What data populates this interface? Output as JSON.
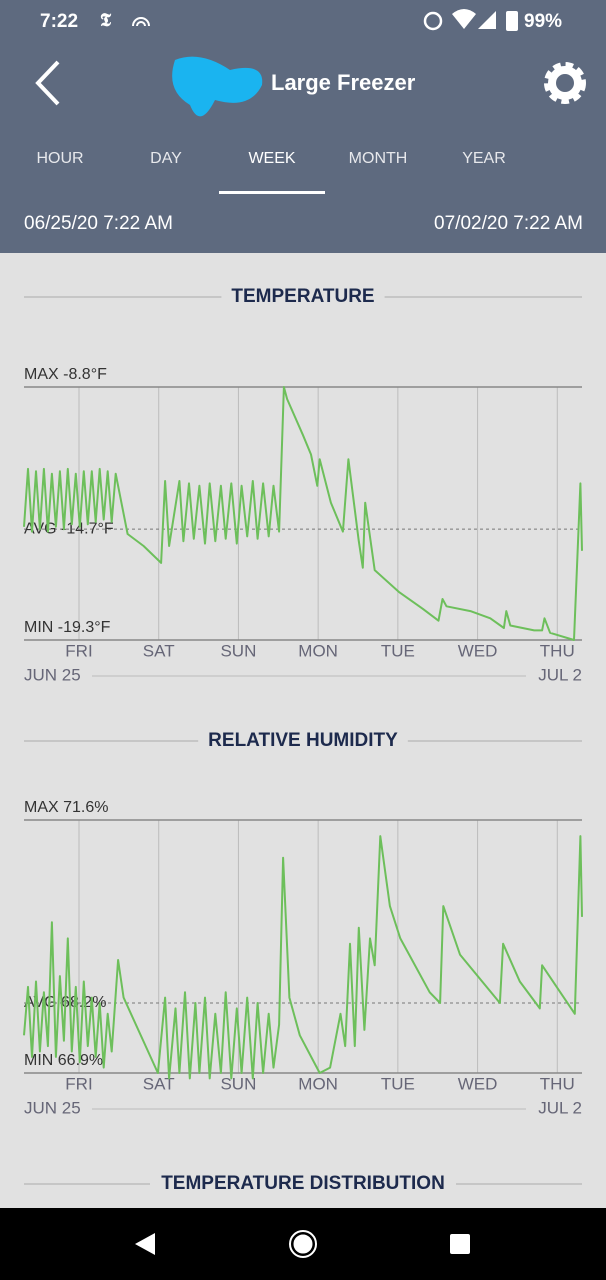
{
  "status_bar": {
    "time": "7:22",
    "battery": "99%"
  },
  "header": {
    "title": "Large Freezer",
    "tabs": [
      "HOUR",
      "DAY",
      "WEEK",
      "MONTH",
      "YEAR"
    ],
    "active_tab": 2,
    "range_start": "06/25/20 7:22 AM",
    "range_end": "07/02/20 7:22 AM"
  },
  "chart_data": [
    {
      "type": "line",
      "title": "TEMPERATURE",
      "color": "#6dbf5b",
      "x": [
        0,
        0.05,
        0.1,
        0.15,
        0.2,
        0.25,
        0.3,
        0.35,
        0.4,
        0.45,
        0.5,
        0.55,
        0.6,
        0.65,
        0.7,
        0.75,
        0.8,
        0.85,
        0.9,
        0.95,
        1.0,
        1.05,
        1.1,
        1.15,
        1.3,
        1.5,
        1.72,
        1.77,
        1.82,
        1.95,
        2.0,
        2.07,
        2.13,
        2.2,
        2.27,
        2.33,
        2.4,
        2.47,
        2.53,
        2.6,
        2.67,
        2.73,
        2.8,
        2.87,
        2.93,
        3.0,
        3.07,
        3.13,
        3.2,
        3.26,
        3.3,
        3.5,
        3.6,
        3.68,
        3.71,
        3.85,
        4.0,
        4.07,
        4.2,
        4.25,
        4.28,
        4.4,
        4.7,
        5.0,
        5.2,
        5.25,
        5.3,
        5.6,
        5.85,
        6.02,
        6.05,
        6.1,
        6.4,
        6.5,
        6.53,
        6.6,
        6.9,
        6.98,
        7.0
      ],
      "values": [
        -14.6,
        -12.2,
        -14.8,
        -12.3,
        -14.7,
        -12.2,
        -14.8,
        -12.4,
        -14.6,
        -12.3,
        -14.7,
        -12.2,
        -14.5,
        -12.4,
        -14.6,
        -12.3,
        -14.5,
        -12.3,
        -14.4,
        -12.2,
        -14.3,
        -12.3,
        -14.4,
        -12.4,
        -14.9,
        -15.4,
        -16.1,
        -12.7,
        -15.4,
        -12.7,
        -15.2,
        -12.8,
        -15.1,
        -12.9,
        -15.3,
        -12.8,
        -15.2,
        -12.9,
        -15.1,
        -12.8,
        -15.3,
        -12.9,
        -15.0,
        -12.7,
        -15.1,
        -12.8,
        -15.0,
        -12.9,
        -14.8,
        -8.8,
        -9.3,
        -10.8,
        -11.6,
        -12.9,
        -11.8,
        -13.6,
        -14.8,
        -11.8,
        -15.2,
        -16.3,
        -13.6,
        -16.4,
        -17.3,
        -18.0,
        -18.5,
        -17.6,
        -17.9,
        -18.1,
        -18.4,
        -18.8,
        -18.1,
        -18.7,
        -18.9,
        -18.9,
        -18.4,
        -19.0,
        -19.3,
        -12.8,
        -15.6
      ],
      "xlim": [
        0,
        7
      ],
      "ylim": [
        -19.3,
        -8.8
      ],
      "xticks": [
        {
          "value": 0.69,
          "label": "FRI"
        },
        {
          "value": 1.69,
          "label": "SAT"
        },
        {
          "value": 2.69,
          "label": "SUN"
        },
        {
          "value": 3.69,
          "label": "MON"
        },
        {
          "value": 4.69,
          "label": "TUE"
        },
        {
          "value": 5.69,
          "label": "WED"
        },
        {
          "value": 6.69,
          "label": "THU"
        }
      ],
      "yticks": [
        {
          "value": -8.8,
          "label": "MAX -8.8°F"
        },
        {
          "value": -14.7,
          "label": "AVG -14.7°F"
        },
        {
          "value": -19.3,
          "label": "MIN -19.3°F"
        }
      ],
      "x_range_labels": [
        "JUN 25",
        "JUL 2"
      ]
    },
    {
      "type": "line",
      "title": "RELATIVE HUMIDITY",
      "color": "#6dbf5b",
      "x": [
        0,
        0.05,
        0.1,
        0.15,
        0.2,
        0.25,
        0.3,
        0.35,
        0.4,
        0.45,
        0.5,
        0.55,
        0.6,
        0.65,
        0.7,
        0.75,
        0.8,
        0.85,
        0.9,
        0.95,
        1.0,
        1.05,
        1.1,
        1.18,
        1.25,
        1.68,
        1.77,
        1.82,
        1.9,
        1.95,
        2.02,
        2.08,
        2.15,
        2.2,
        2.27,
        2.33,
        2.4,
        2.47,
        2.53,
        2.6,
        2.67,
        2.73,
        2.8,
        2.87,
        2.93,
        3.0,
        3.07,
        3.13,
        3.2,
        3.25,
        3.33,
        3.46,
        3.71,
        3.84,
        3.97,
        4.03,
        4.09,
        4.15,
        4.2,
        4.27,
        4.34,
        4.4,
        4.47,
        4.59,
        4.72,
        5.09,
        5.22,
        5.26,
        5.47,
        5.97,
        6.01,
        6.22,
        6.47,
        6.5,
        6.91,
        6.98,
        7.0
      ],
      "values": [
        67.6,
        68.5,
        67.2,
        68.6,
        67.3,
        68.4,
        67.4,
        69.7,
        67.2,
        68.7,
        67.5,
        69.4,
        67.3,
        68.5,
        67.1,
        68.6,
        67.4,
        68.3,
        67.2,
        68.2,
        67.0,
        68.0,
        67.3,
        69.0,
        68.3,
        66.9,
        68.3,
        66.8,
        68.1,
        66.9,
        68.4,
        66.8,
        68.2,
        66.9,
        68.3,
        66.8,
        68.0,
        66.9,
        68.4,
        66.8,
        68.1,
        66.9,
        68.3,
        66.8,
        68.2,
        66.9,
        68.0,
        67.0,
        67.8,
        70.9,
        68.3,
        67.6,
        66.9,
        67.0,
        68.0,
        67.4,
        69.3,
        67.4,
        69.6,
        67.7,
        69.4,
        68.9,
        71.3,
        70.0,
        69.4,
        68.4,
        68.2,
        70.0,
        69.1,
        68.2,
        69.3,
        68.6,
        68.1,
        68.9,
        68.0,
        71.3,
        69.8
      ],
      "xlim": [
        0,
        7
      ],
      "ylim": [
        66.9,
        71.6
      ],
      "xticks": [
        {
          "value": 0.69,
          "label": "FRI"
        },
        {
          "value": 1.69,
          "label": "SAT"
        },
        {
          "value": 2.69,
          "label": "SUN"
        },
        {
          "value": 3.69,
          "label": "MON"
        },
        {
          "value": 4.69,
          "label": "TUE"
        },
        {
          "value": 5.69,
          "label": "WED"
        },
        {
          "value": 6.69,
          "label": "THU"
        }
      ],
      "yticks": [
        {
          "value": 71.6,
          "label": "MAX 71.6%"
        },
        {
          "value": 68.2,
          "label": "AVG 68.2%"
        },
        {
          "value": 66.9,
          "label": "MIN 66.9%"
        }
      ],
      "x_range_labels": [
        "JUN 25",
        "JUL 2"
      ]
    }
  ],
  "next_section_title": "TEMPERATURE DISTRIBUTION"
}
